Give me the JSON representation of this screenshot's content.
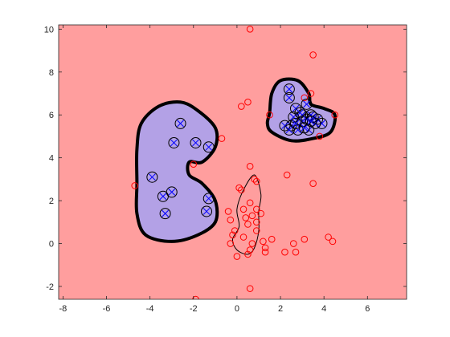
{
  "chart_data": {
    "type": "scatter",
    "title": "",
    "xlabel": "",
    "ylabel": "",
    "xlim": [
      -8.2,
      7.8
    ],
    "ylim": [
      -2.6,
      10.2
    ],
    "xticks": [
      -8,
      -6,
      -4,
      -2,
      0,
      2,
      4,
      6
    ],
    "yticks": [
      -2,
      0,
      2,
      4,
      6,
      8,
      10
    ],
    "xtick_labels": [
      "-8",
      "-6",
      "-4",
      "-2",
      "0",
      "2",
      "4",
      "6"
    ],
    "ytick_labels": [
      "-2",
      "0",
      "2",
      "4",
      "6",
      "8",
      "10"
    ],
    "grid": false,
    "legend": "none",
    "colors": {
      "negative_region": "#ff9e9e",
      "positive_region": "#b3a1e6",
      "negative_points": "#ff0000",
      "positive_points": "#0000ff",
      "support_vectors": "#000000",
      "boundary": "#000000"
    },
    "regions": [
      {
        "name": "positive region left",
        "boundary": [
          [
            -3.6,
            6.4
          ],
          [
            -2.6,
            6.6
          ],
          [
            -1.8,
            6.2
          ],
          [
            -1.0,
            5.4
          ],
          [
            -1.0,
            4.5
          ],
          [
            -1.6,
            3.8
          ],
          [
            -2.2,
            3.8
          ],
          [
            -2.2,
            3.2
          ],
          [
            -1.6,
            2.8
          ],
          [
            -1.0,
            2.0
          ],
          [
            -1.0,
            1.0
          ],
          [
            -1.8,
            0.4
          ],
          [
            -3.0,
            0.1
          ],
          [
            -4.2,
            0.4
          ],
          [
            -4.6,
            1.4
          ],
          [
            -4.6,
            2.8
          ],
          [
            -4.6,
            4.4
          ],
          [
            -4.4,
            5.6
          ]
        ]
      },
      {
        "name": "positive region right",
        "boundary": [
          [
            1.5,
            6.1
          ],
          [
            1.6,
            7.0
          ],
          [
            2.0,
            7.6
          ],
          [
            2.8,
            7.6
          ],
          [
            3.3,
            7.0
          ],
          [
            3.4,
            6.5
          ],
          [
            4.0,
            6.3
          ],
          [
            4.5,
            6.0
          ],
          [
            4.3,
            5.2
          ],
          [
            3.5,
            4.9
          ],
          [
            2.5,
            4.8
          ],
          [
            1.6,
            5.2
          ],
          [
            1.4,
            5.6
          ]
        ]
      },
      {
        "name": "positive region center",
        "boundary": [
          [
            0.3,
            2.5
          ],
          [
            0.8,
            3.2
          ],
          [
            1.1,
            2.3
          ],
          [
            1.0,
            1.5
          ],
          [
            1.0,
            0.6
          ],
          [
            0.8,
            -0.2
          ],
          [
            0.5,
            -0.5
          ],
          [
            0.0,
            -0.3
          ],
          [
            -0.2,
            0.2
          ],
          [
            0.1,
            0.8
          ],
          [
            0.0,
            1.6
          ]
        ]
      }
    ],
    "series": [
      {
        "name": "",
        "marker": "x",
        "color": "#0000ff",
        "support_vectors": "circled",
        "points": [
          [
            -2.6,
            5.6
          ],
          [
            -2.9,
            4.7
          ],
          [
            -1.9,
            4.7
          ],
          [
            -1.3,
            4.5
          ],
          [
            -3.9,
            3.1
          ],
          [
            -3.0,
            2.4
          ],
          [
            -3.4,
            2.2
          ],
          [
            -1.3,
            2.1
          ],
          [
            -1.4,
            1.5
          ],
          [
            -3.3,
            1.4
          ],
          [
            2.4,
            7.2
          ],
          [
            2.4,
            6.8
          ],
          [
            2.7,
            6.3
          ],
          [
            3.2,
            6.5
          ],
          [
            2.6,
            5.9
          ],
          [
            3.0,
            6.0
          ],
          [
            3.4,
            6.0
          ],
          [
            3.7,
            5.8
          ],
          [
            3.9,
            5.6
          ],
          [
            2.5,
            5.5
          ],
          [
            2.2,
            5.5
          ],
          [
            2.4,
            5.3
          ],
          [
            2.8,
            5.3
          ],
          [
            3.3,
            5.3
          ],
          [
            3.0,
            5.7
          ],
          [
            3.6,
            5.6
          ],
          [
            2.9,
            6.1
          ],
          [
            3.2,
            5.8
          ],
          [
            3.5,
            5.9
          ],
          [
            2.7,
            5.6
          ],
          [
            3.1,
            5.4
          ],
          [
            3.4,
            5.7
          ]
        ]
      },
      {
        "name": "",
        "marker": "o",
        "color": "#ff0000",
        "points": [
          [
            0.6,
            10.0
          ],
          [
            3.5,
            8.8
          ],
          [
            0.5,
            6.6
          ],
          [
            0.2,
            6.4
          ],
          [
            3.4,
            7.0
          ],
          [
            3.1,
            6.8
          ],
          [
            1.5,
            6.0
          ],
          [
            4.5,
            6.0
          ],
          [
            3.8,
            5.0
          ],
          [
            -0.7,
            4.9
          ],
          [
            -2.0,
            3.7
          ],
          [
            0.6,
            3.6
          ],
          [
            2.3,
            3.2
          ],
          [
            0.8,
            3.0
          ],
          [
            0.9,
            2.9
          ],
          [
            0.2,
            2.5
          ],
          [
            0.1,
            2.6
          ],
          [
            3.5,
            2.8
          ],
          [
            -4.7,
            2.7
          ],
          [
            0.6,
            1.9
          ],
          [
            0.3,
            1.6
          ],
          [
            -0.4,
            1.5
          ],
          [
            0.9,
            1.6
          ],
          [
            0.4,
            1.2
          ],
          [
            0.7,
            1.3
          ],
          [
            1.1,
            1.4
          ],
          [
            -0.3,
            1.1
          ],
          [
            0.9,
            1.0
          ],
          [
            0.5,
            0.9
          ],
          [
            -0.1,
            0.6
          ],
          [
            -0.2,
            0.4
          ],
          [
            0.3,
            0.3
          ],
          [
            -0.3,
            0.0
          ],
          [
            0.7,
            0.0
          ],
          [
            1.2,
            0.1
          ],
          [
            1.6,
            0.2
          ],
          [
            2.2,
            -0.4
          ],
          [
            2.7,
            -0.4
          ],
          [
            3.1,
            0.2
          ],
          [
            4.2,
            0.3
          ],
          [
            4.4,
            0.1
          ],
          [
            2.6,
            0.0
          ],
          [
            0.0,
            -0.6
          ],
          [
            0.6,
            -0.3
          ],
          [
            0.5,
            -0.5
          ],
          [
            1.3,
            -0.4
          ],
          [
            1.3,
            -0.2
          ],
          [
            0.6,
            -2.1
          ],
          [
            -1.9,
            -2.6
          ],
          [
            0.9,
            0.6
          ]
        ]
      }
    ]
  }
}
